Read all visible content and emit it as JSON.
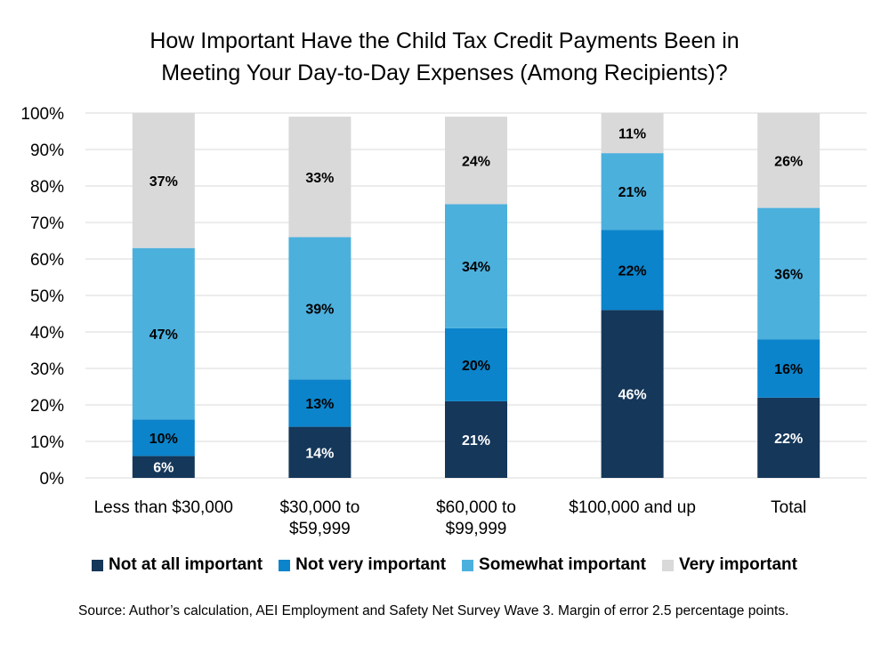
{
  "chart_data": {
    "type": "bar",
    "stacked": true,
    "title_lines": [
      "How Important Have the Child Tax Credit Payments Been in",
      "Meeting Your Day-to-Day Expenses (Among Recipients)?"
    ],
    "categories": [
      [
        "Less than $30,000"
      ],
      [
        "$30,000 to",
        "$59,999"
      ],
      [
        "$60,000 to",
        "$99,999"
      ],
      [
        "$100,000 and up"
      ],
      [
        "Total"
      ]
    ],
    "series": [
      {
        "name": "Not at all important",
        "color": "#15375a",
        "label_color": "#ffffff",
        "values": [
          6,
          14,
          21,
          46,
          22
        ],
        "labels": [
          "6%",
          "14%",
          "21%",
          "46%",
          "22%"
        ]
      },
      {
        "name": "Not very important",
        "color": "#0b84cb",
        "label_color": "#000000",
        "values": [
          10,
          13,
          20,
          22,
          16
        ],
        "labels": [
          "10%",
          "13%",
          "20%",
          "22%",
          "16%"
        ]
      },
      {
        "name": "Somewhat important",
        "color": "#4cb0dd",
        "label_color": "#000000",
        "values": [
          47,
          39,
          34,
          21,
          36
        ],
        "labels": [
          "47%",
          "39%",
          "34%",
          "21%",
          "36%"
        ]
      },
      {
        "name": "Very important",
        "color": "#d9d9d9",
        "label_color": "#000000",
        "values": [
          37,
          33,
          24,
          11,
          26
        ],
        "labels": [
          "37%",
          "33%",
          "24%",
          "11%",
          "26%"
        ]
      }
    ],
    "ylim": [
      0,
      100
    ],
    "yticks": [
      "0%",
      "10%",
      "20%",
      "30%",
      "40%",
      "50%",
      "60%",
      "70%",
      "80%",
      "90%",
      "100%"
    ],
    "grid": true,
    "legend_position": "bottom",
    "gridline_color": "#d9d9d9"
  },
  "source": "Source: Author’s calculation, AEI Employment and Safety Net Survey Wave 3. Margin of error 2.5 percentage points."
}
